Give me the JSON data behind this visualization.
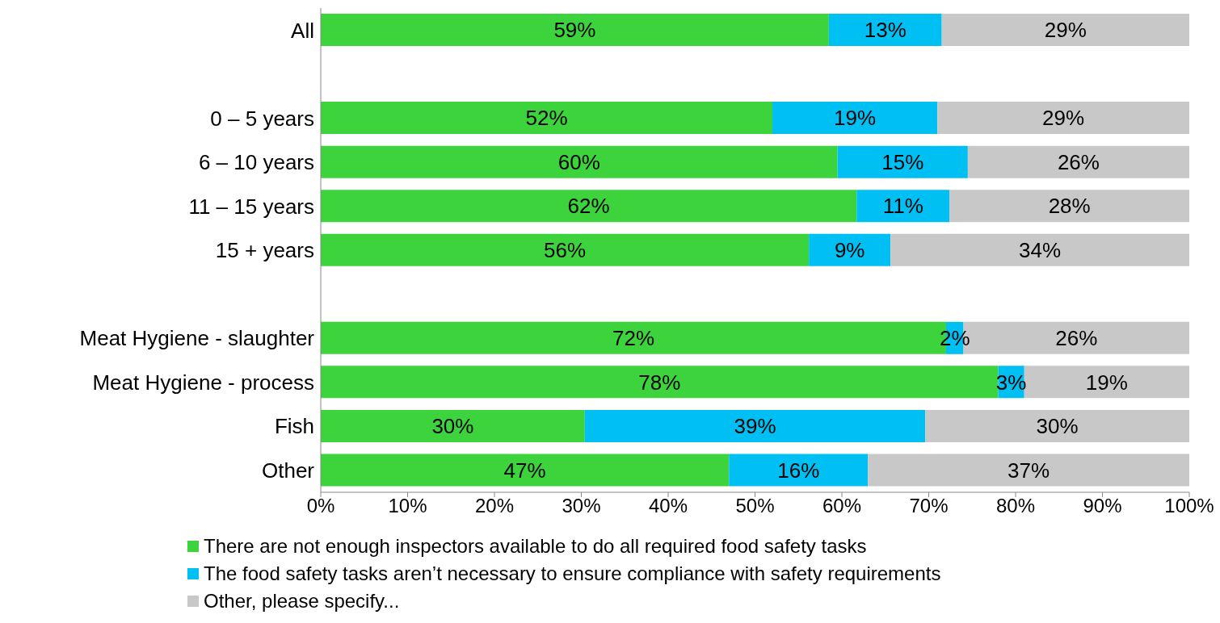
{
  "chart_data": {
    "type": "bar",
    "orientation": "horizontal",
    "stacked": true,
    "categories": [
      "All",
      null,
      "0 – 5 years",
      "6 – 10 years",
      "11 – 15 years",
      "15 + years",
      null,
      "Meat Hygiene - slaughter",
      "Meat Hygiene - process",
      "Fish",
      "Other"
    ],
    "series": [
      {
        "name": "There are not enough inspectors available to do all required food safety tasks",
        "color": "#3cd33c",
        "values": [
          58.5,
          null,
          52,
          59.5,
          61.7,
          56.2,
          null,
          72,
          78,
          30.4,
          47
        ],
        "value_labels": [
          "59%",
          null,
          "52%",
          "60%",
          "62%",
          "56%",
          null,
          "72%",
          "78%",
          "30%",
          "47%"
        ]
      },
      {
        "name": "The food safety tasks aren’t necessary to ensure compliance with safety requirements",
        "color": "#00bff3",
        "values": [
          13,
          null,
          19,
          15,
          10.7,
          9.4,
          null,
          2,
          3,
          39.2,
          16
        ],
        "value_labels": [
          "13%",
          null,
          "19%",
          "15%",
          "11%",
          "9%",
          null,
          "2%",
          "3%",
          "39%",
          "16%"
        ]
      },
      {
        "name": "Other, please specify...",
        "color": "#c8c8c8",
        "values": [
          28.5,
          null,
          29,
          25.5,
          27.6,
          34.4,
          null,
          26,
          19,
          30.4,
          37
        ],
        "value_labels": [
          "29%",
          null,
          "29%",
          "26%",
          "28%",
          "34%",
          null,
          "26%",
          "19%",
          "30%",
          "37%"
        ]
      }
    ],
    "xlim": [
      0,
      100
    ],
    "xticks": [
      {
        "value": 0,
        "label": "0%"
      },
      {
        "value": 10,
        "label": "10%"
      },
      {
        "value": 20,
        "label": "20%"
      },
      {
        "value": 30,
        "label": "30%"
      },
      {
        "value": 40,
        "label": "40%"
      },
      {
        "value": 50,
        "label": "50%"
      },
      {
        "value": 60,
        "label": "60%"
      },
      {
        "value": 70,
        "label": "70%"
      },
      {
        "value": 80,
        "label": "80%"
      },
      {
        "value": 90,
        "label": "90%"
      },
      {
        "value": 100,
        "label": "100%"
      }
    ],
    "legend": "bottom",
    "grid": false
  }
}
